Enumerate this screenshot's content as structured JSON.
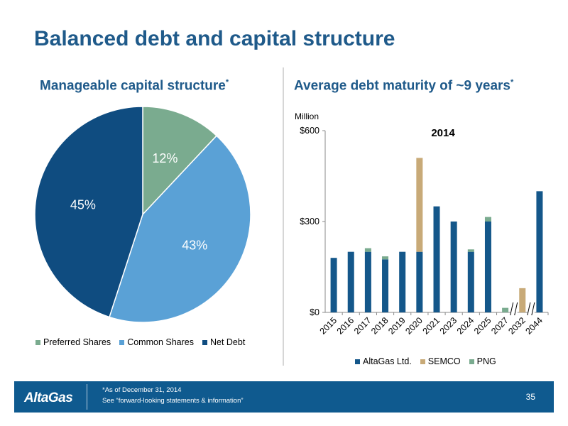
{
  "page": {
    "title": "Balanced debt and capital structure",
    "left_subtitle": "Manageable capital structure",
    "right_subtitle": "Average debt maturity of ~9 years",
    "asterisk": "*"
  },
  "footer": {
    "logo_text": "AltaGas",
    "note_line1": "*As of December 31, 2014",
    "note_line2": "See “forward-looking statements & information”",
    "page_number": "35"
  },
  "colors": {
    "altagas": "#14578a",
    "semco": "#c8aa78",
    "png": "#7aab8f",
    "preferred": "#7aab8f",
    "common": "#5aa1d6",
    "net_debt": "#0f4c80",
    "title": "#1f5a8a",
    "footer": "#0f5a8f"
  },
  "chart_data": [
    {
      "type": "pie",
      "title": "",
      "labels": [
        "Preferred Shares",
        "Common Shares",
        "Net Debt"
      ],
      "values": [
        12,
        43,
        45
      ],
      "data_labels": [
        "12%",
        "43%",
        "45%"
      ],
      "legend": "bottom"
    },
    {
      "type": "bar",
      "stacked": true,
      "title": "2014",
      "ylabel": "Million",
      "categories": [
        "2015",
        "2016",
        "2017",
        "2018",
        "2019",
        "2020",
        "2021",
        "2023",
        "2024",
        "2025",
        "2027",
        "2032",
        "2044"
      ],
      "series": [
        {
          "name": "AltaGas Ltd.",
          "values": [
            180,
            200,
            200,
            175,
            200,
            200,
            350,
            300,
            200,
            300,
            0,
            0,
            400
          ]
        },
        {
          "name": "SEMCO",
          "values": [
            0,
            0,
            0,
            0,
            0,
            310,
            0,
            0,
            0,
            0,
            0,
            80,
            0
          ]
        },
        {
          "name": "PNG",
          "values": [
            0,
            0,
            12,
            10,
            0,
            0,
            0,
            0,
            8,
            15,
            15,
            0,
            0
          ]
        }
      ],
      "ylim": [
        0,
        600
      ],
      "yticks": [
        0,
        300,
        600
      ],
      "ytick_labels": [
        "$0",
        "$300",
        "$600"
      ],
      "axis_breaks_after": [
        "2027",
        "2032"
      ],
      "legend": "bottom"
    }
  ]
}
